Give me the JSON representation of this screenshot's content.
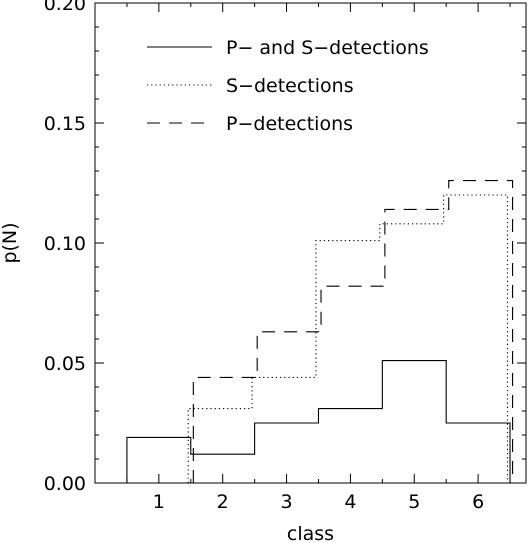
{
  "chart_data": {
    "type": "line",
    "step": true,
    "xlabel": "class",
    "ylabel": "p(N)",
    "xlim": [
      0,
      6.75
    ],
    "ylim": [
      0,
      0.2
    ],
    "xticks": [
      "1",
      "2",
      "3",
      "4",
      "5",
      "6"
    ],
    "yticks": [
      "0.00",
      "0.05",
      "0.10",
      "0.15",
      "0.20"
    ],
    "legend_position": "top-left",
    "series": [
      {
        "name": "P− and S−detections",
        "style": "solid",
        "edges": [
          0.5,
          1.5,
          2.5,
          3.5,
          4.5,
          5.5,
          6.5
        ],
        "values": [
          0.019,
          0.012,
          0.025,
          0.031,
          0.051,
          0.025
        ]
      },
      {
        "name": "S−detections",
        "style": "dotted",
        "edges": [
          1.46,
          2.46,
          3.46,
          4.46,
          5.46,
          6.46
        ],
        "values": [
          0.031,
          0.044,
          0.101,
          0.108,
          0.12
        ]
      },
      {
        "name": "P−detections",
        "style": "dashed",
        "edges": [
          1.54,
          2.54,
          3.54,
          4.54,
          5.54,
          6.54
        ],
        "values": [
          0.044,
          0.063,
          0.082,
          0.114,
          0.126
        ]
      }
    ]
  }
}
